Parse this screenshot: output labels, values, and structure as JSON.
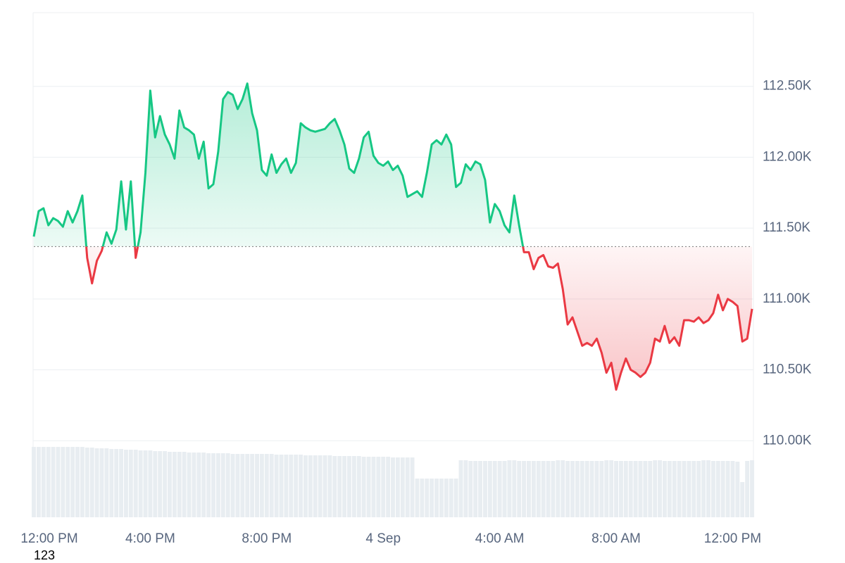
{
  "chart_data": {
    "type": "line",
    "values": [
      111440,
      111620,
      111640,
      111520,
      111570,
      111550,
      111510,
      111620,
      111540,
      111620,
      111730,
      111290,
      111110,
      111270,
      111340,
      111470,
      111390,
      111490,
      111830,
      111490,
      111830,
      111290,
      111470,
      111890,
      112470,
      112140,
      112290,
      112160,
      112090,
      111990,
      112330,
      112210,
      112190,
      112160,
      111990,
      112110,
      111780,
      111810,
      112040,
      112410,
      112460,
      112440,
      112340,
      112410,
      112520,
      112310,
      112190,
      111910,
      111870,
      112020,
      111890,
      111950,
      111990,
      111890,
      111960,
      112240,
      112210,
      112190,
      112180,
      112190,
      112200,
      112240,
      112270,
      112190,
      112090,
      111920,
      111890,
      111990,
      112140,
      112180,
      112010,
      111960,
      111940,
      111970,
      111910,
      111940,
      111870,
      111720,
      111740,
      111760,
      111720,
      111890,
      112090,
      112120,
      112090,
      112160,
      112090,
      111790,
      111820,
      111950,
      111910,
      111970,
      111950,
      111840,
      111540,
      111670,
      111620,
      111520,
      111470,
      111730,
      111520,
      111330,
      111330,
      111210,
      111290,
      111310,
      111230,
      111220,
      111250,
      111070,
      110820,
      110870,
      110770,
      110670,
      110690,
      110670,
      110720,
      110620,
      110480,
      110550,
      110360,
      110480,
      110580,
      110500,
      110480,
      110450,
      110480,
      110550,
      110720,
      110700,
      110810,
      110690,
      110730,
      110670,
      110850,
      110850,
      110840,
      110870,
      110830,
      110850,
      110900,
      111030,
      110920,
      111000,
      110980,
      110950,
      110700,
      110720,
      110930
    ],
    "baseline": 111370,
    "up_color": "#16c784",
    "down_color": "#ea3943",
    "volume": {
      "color": "#e8edf1",
      "ylim": [
        0,
        100
      ],
      "values": [
        100,
        100,
        100,
        100,
        100,
        100,
        100,
        100,
        100,
        100,
        100,
        99,
        99,
        98,
        98,
        98,
        97,
        97,
        97,
        96,
        96,
        96,
        95,
        95,
        95,
        94,
        94,
        94,
        93,
        93,
        93,
        93,
        92,
        92,
        92,
        92,
        91,
        91,
        91,
        91,
        91,
        90,
        90,
        90,
        90,
        90,
        90,
        90,
        90,
        90,
        89,
        89,
        89,
        89,
        89,
        89,
        88,
        88,
        88,
        88,
        88,
        88,
        87,
        87,
        87,
        87,
        87,
        87,
        86,
        86,
        86,
        86,
        86,
        86,
        85,
        85,
        85,
        85,
        85,
        55,
        55,
        55,
        55,
        55,
        55,
        55,
        55,
        55,
        81,
        81,
        80,
        80,
        80,
        80,
        80,
        80,
        80,
        80,
        81,
        81,
        80,
        80,
        80,
        80,
        80,
        80,
        80,
        80,
        81,
        81,
        80,
        80,
        80,
        80,
        80,
        80,
        80,
        80,
        81,
        81,
        80,
        80,
        80,
        80,
        80,
        80,
        80,
        80,
        81,
        81,
        80,
        80,
        80,
        80,
        80,
        80,
        80,
        80,
        81,
        81,
        80,
        80,
        80,
        80,
        80,
        79,
        50,
        80,
        81
      ]
    },
    "xlim": [
      0,
      148
    ],
    "xticks": [
      {
        "value": 0,
        "label": "12:00 PM"
      },
      {
        "value": 24,
        "label": "4:00 PM"
      },
      {
        "value": 48,
        "label": "8:00 PM"
      },
      {
        "value": 72,
        "label": "4 Sep"
      },
      {
        "value": 96,
        "label": "4:00 AM"
      },
      {
        "value": 120,
        "label": "8:00 AM"
      },
      {
        "value": 144,
        "label": "12:00 PM"
      }
    ],
    "ylim": [
      109460,
      113020
    ],
    "yticks": [
      {
        "value": 110000,
        "label": "110.00K"
      },
      {
        "value": 110500,
        "label": "110.50K"
      },
      {
        "value": 111000,
        "label": "111.00K"
      },
      {
        "value": 111500,
        "label": "111.50K"
      },
      {
        "value": 112000,
        "label": "112.00K"
      },
      {
        "value": 112500,
        "label": "112.50K"
      }
    ],
    "grid": true,
    "annotation": "123"
  }
}
